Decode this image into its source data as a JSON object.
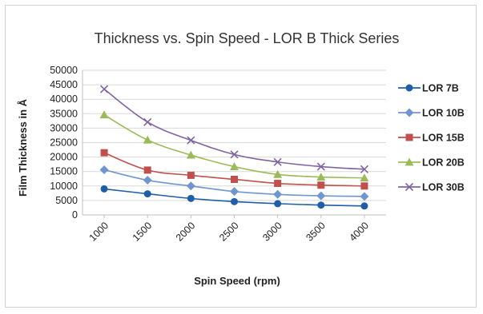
{
  "chart_data": {
    "type": "line",
    "title": "Thickness vs. Spin Speed - LOR B Thick Series",
    "xlabel": "Spin Speed (rpm)",
    "ylabel": "Film Thickness in Å",
    "x": [
      1000,
      1500,
      2000,
      2500,
      3000,
      3500,
      4000
    ],
    "x_tick_labels": [
      "1000",
      "1500",
      "2000",
      "2500",
      "3000",
      "3500",
      "4000"
    ],
    "ylim": [
      0,
      50000
    ],
    "y_tick_labels": [
      "0",
      "5000",
      "10000",
      "15000",
      "20000",
      "25000",
      "30000",
      "35000",
      "40000",
      "45000",
      "50000"
    ],
    "grid": true,
    "legend_position": "right",
    "series": [
      {
        "name": "LOR 7B",
        "color": "#1f5fa8",
        "marker": "circle",
        "values": [
          9000,
          7300,
          5700,
          4600,
          3900,
          3400,
          3100
        ]
      },
      {
        "name": "LOR 10B",
        "color": "#6f96cf",
        "marker": "diamond",
        "values": [
          15600,
          12000,
          10000,
          8100,
          7100,
          6600,
          6400
        ]
      },
      {
        "name": "LOR 15B",
        "color": "#c0504d",
        "marker": "square",
        "values": [
          21500,
          15500,
          13700,
          12300,
          10900,
          10300,
          10000
        ]
      },
      {
        "name": "LOR 20B",
        "color": "#9bbb59",
        "marker": "triangle",
        "values": [
          34600,
          25900,
          20700,
          16700,
          14000,
          13100,
          12800
        ]
      },
      {
        "name": "LOR 30B",
        "color": "#8064a2",
        "marker": "x",
        "values": [
          43500,
          32100,
          25800,
          20900,
          18300,
          16700,
          15800
        ]
      }
    ]
  }
}
